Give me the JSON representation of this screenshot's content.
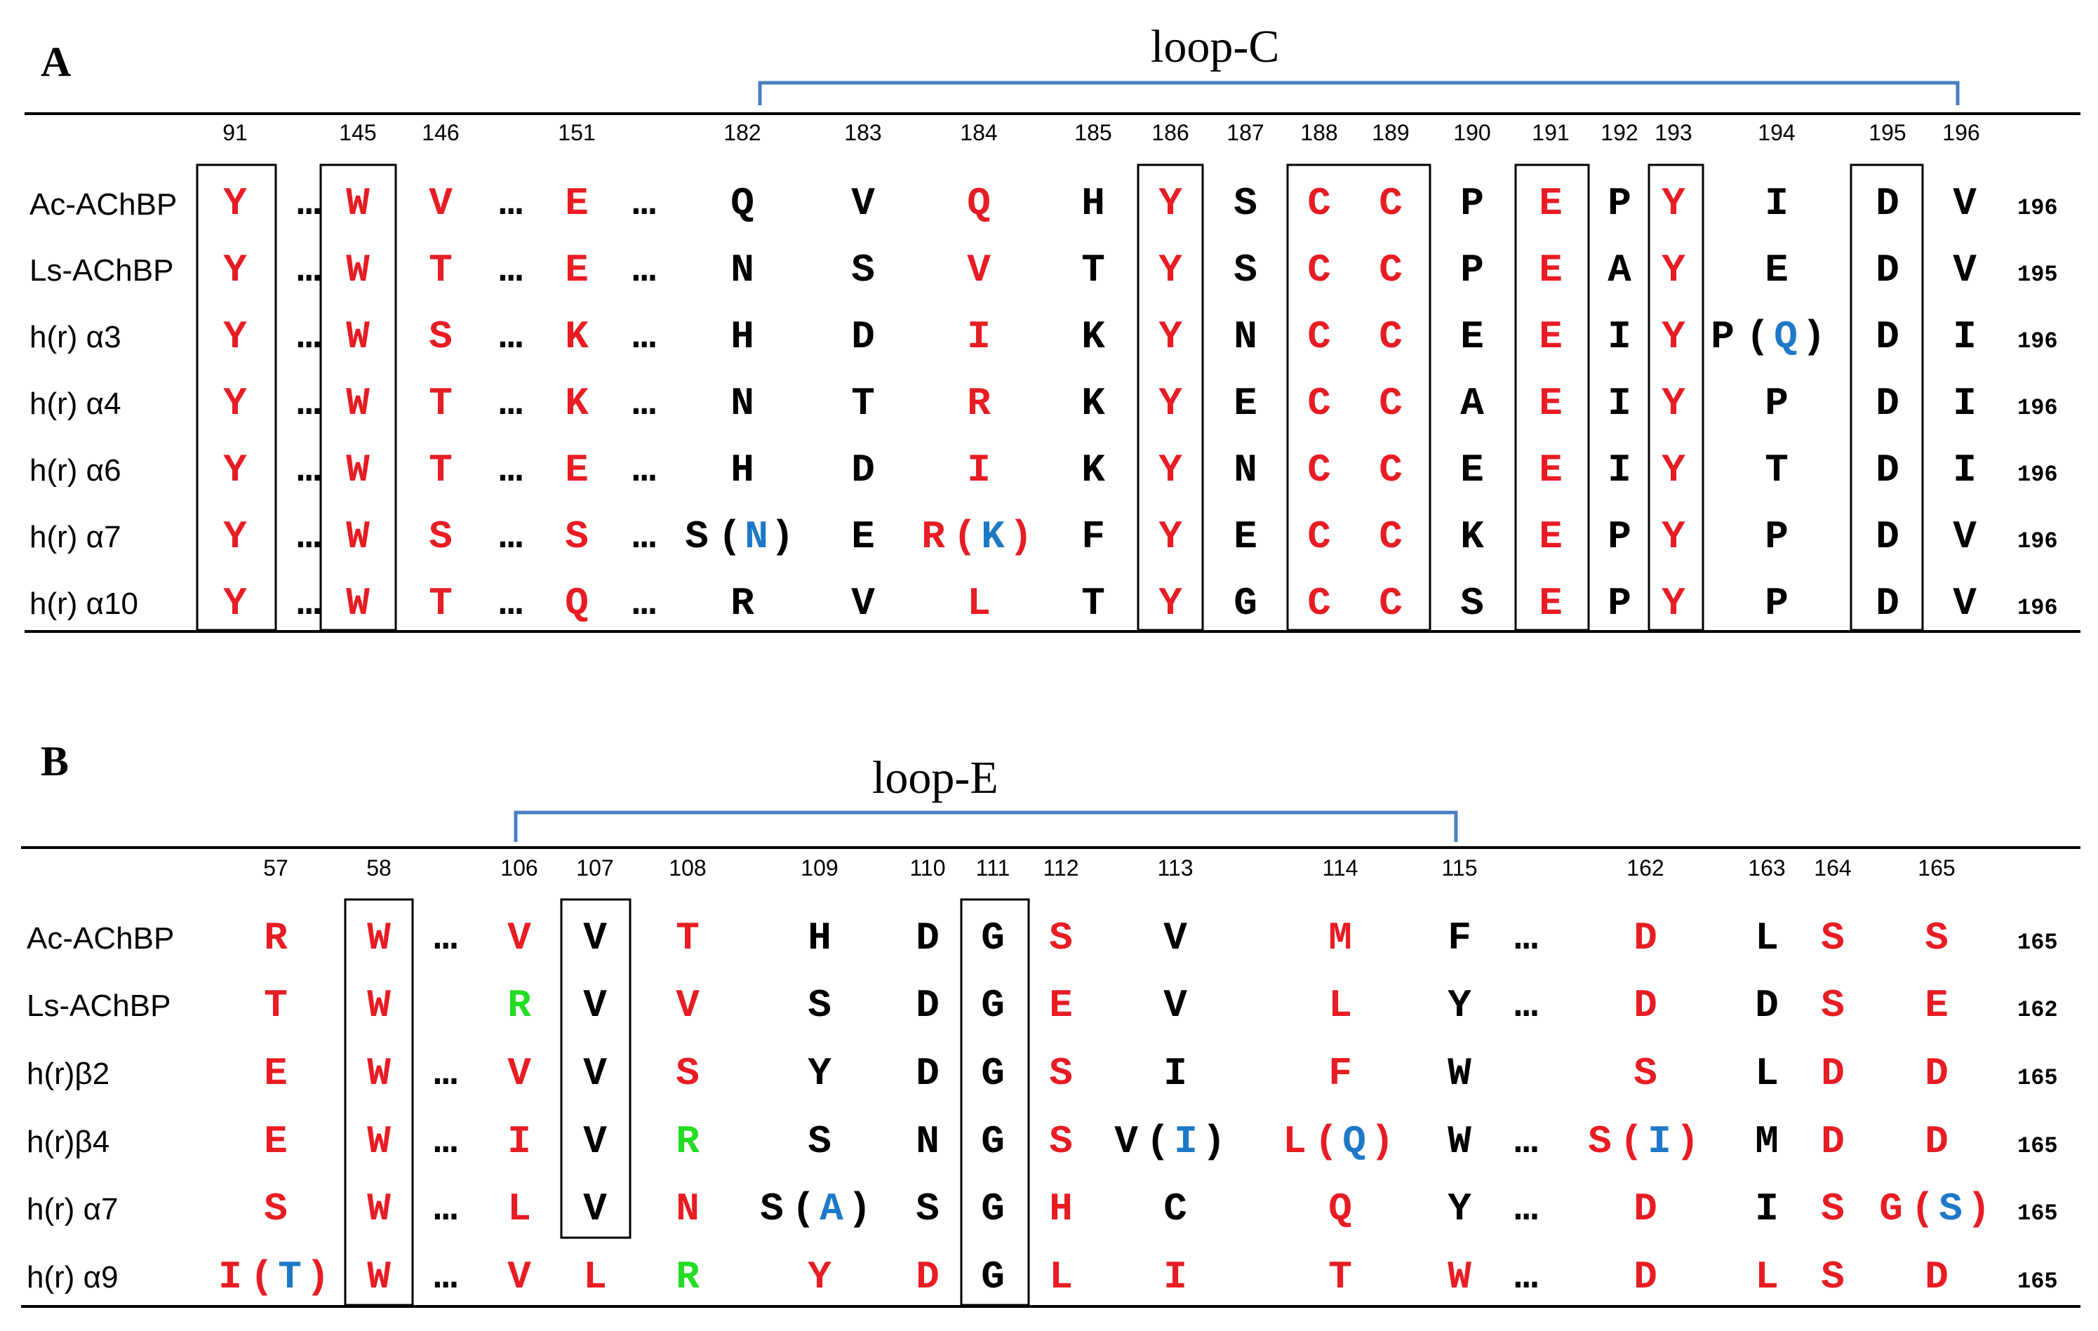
{
  "colors": {
    "red": "#e81c23",
    "black": "#000000",
    "blue": "#1e78c8",
    "green": "#22dd22",
    "bracket": "#4a7fc1"
  },
  "panelA": {
    "label": "A",
    "loop": "loop-C",
    "positions": [
      "91",
      "145",
      "146",
      "151",
      "182",
      "183",
      "184",
      "185",
      "186",
      "187",
      "188",
      "189",
      "190",
      "191",
      "192",
      "193",
      "194",
      "195",
      "196"
    ],
    "rows": [
      {
        "name": "Ac-AChBP",
        "end": "196"
      },
      {
        "name": "Ls-AChBP",
        "end": "195"
      },
      {
        "name": "h(r) α3",
        "end": "196"
      },
      {
        "name": "h(r) α4",
        "end": "196"
      },
      {
        "name": "h(r) α6",
        "end": "196"
      },
      {
        "name": "h(r) α7",
        "end": "196"
      },
      {
        "name": "h(r) α10",
        "end": "196"
      }
    ]
  },
  "panelB": {
    "label": "B",
    "loop": "loop-E",
    "positions": [
      "57",
      "58",
      "106",
      "107",
      "108",
      "109",
      "110",
      "111",
      "112",
      "113",
      "114",
      "115",
      "162",
      "163",
      "164",
      "165"
    ],
    "rows": [
      {
        "name": "Ac-AChBP",
        "end": "165"
      },
      {
        "name": "Ls-AChBP",
        "end": "162"
      },
      {
        "name": "h(r)β2",
        "end": "165"
      },
      {
        "name": "h(r)β4",
        "end": "165"
      },
      {
        "name": "h(r) α7",
        "end": "165"
      },
      {
        "name": "h(r) α9",
        "end": "165"
      }
    ]
  }
}
